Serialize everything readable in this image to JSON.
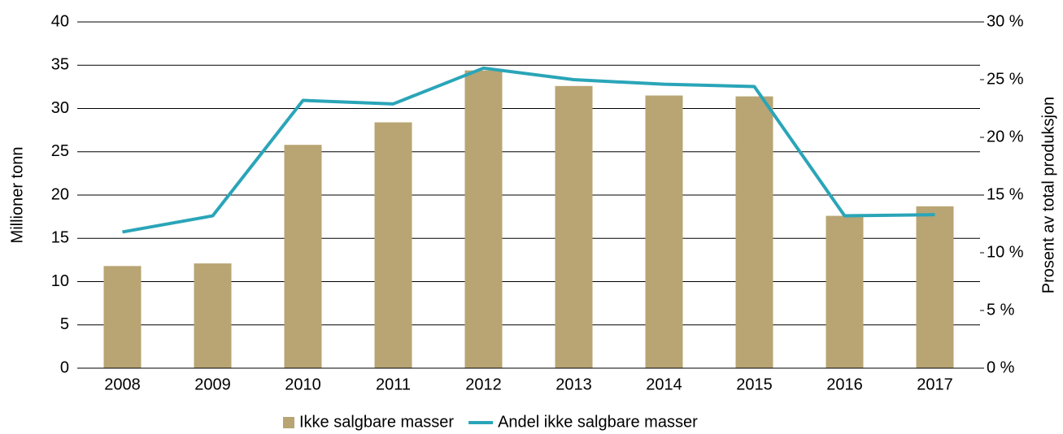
{
  "chart_data": {
    "type": "bar_line",
    "categories": [
      "2008",
      "2009",
      "2010",
      "2011",
      "2012",
      "2013",
      "2014",
      "2015",
      "2016",
      "2017"
    ],
    "series": [
      {
        "name": "Ikke salgbare masser",
        "type": "bar",
        "color": "#b8a573",
        "axis": "y",
        "values": [
          11.8,
          12.1,
          25.8,
          28.4,
          34.4,
          32.6,
          31.5,
          31.4,
          17.6,
          18.7
        ]
      },
      {
        "name": "Andel ikke salgbare masser",
        "type": "line",
        "color": "#2aa5b8",
        "axis": "y2",
        "values": [
          11.8,
          13.2,
          23.2,
          22.9,
          26.0,
          25.0,
          24.6,
          24.4,
          13.2,
          13.3
        ]
      }
    ],
    "ylabel": "Millioner tonn",
    "y2label": "Prosent av total produksjon",
    "ylim": [
      0,
      40
    ],
    "yticks": [
      0,
      5,
      10,
      15,
      20,
      25,
      30,
      35,
      40
    ],
    "y2lim": [
      0,
      30
    ],
    "y2ticks": [
      {
        "value": 0,
        "label": "0 %"
      },
      {
        "value": 5,
        "label": "5 %"
      },
      {
        "value": 10,
        "label": "10 %"
      },
      {
        "value": 15,
        "label": "15 %"
      },
      {
        "value": 20,
        "label": "20 %"
      },
      {
        "value": 25,
        "label": "25 %"
      },
      {
        "value": 30,
        "label": "30 %"
      }
    ],
    "grid": true,
    "legend": "bottom"
  }
}
